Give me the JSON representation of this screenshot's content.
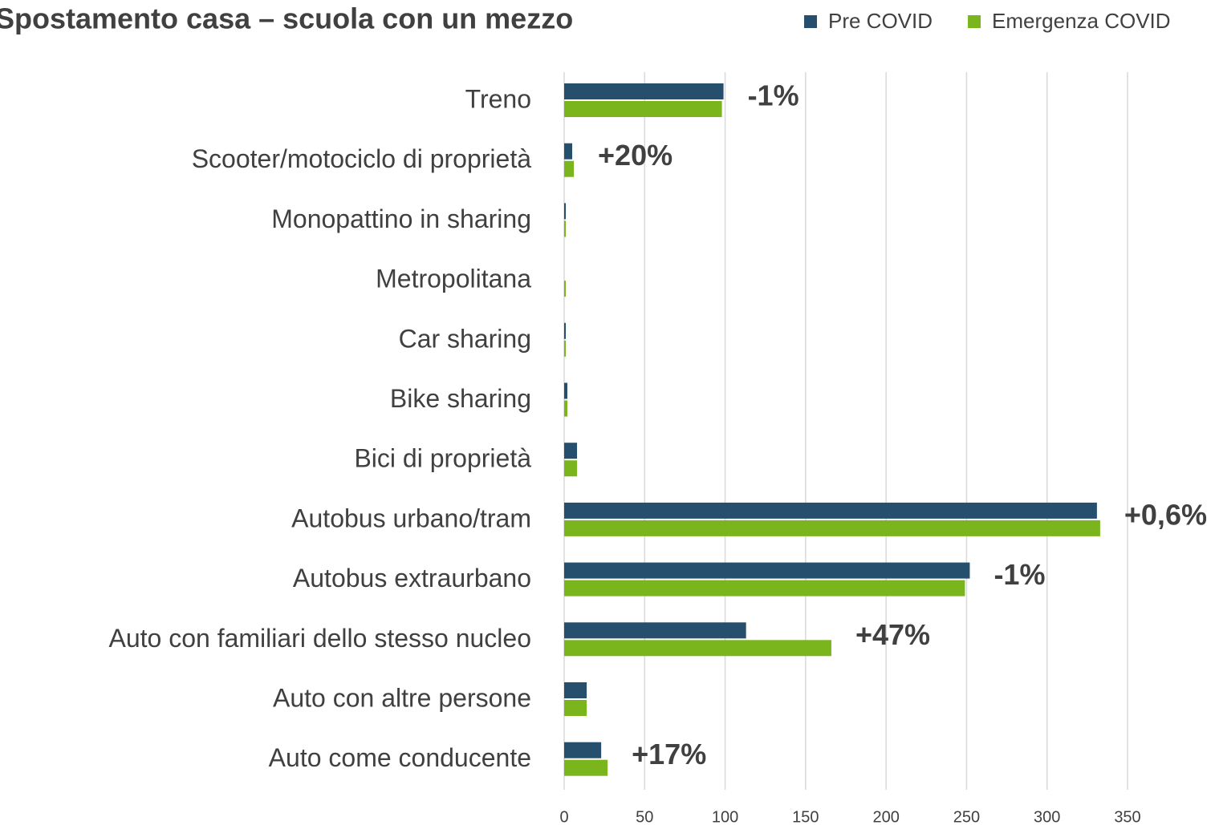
{
  "chart_data": {
    "type": "bar",
    "orientation": "horizontal",
    "title": "Spostamento casa – scuola con un mezzo",
    "categories": [
      "Treno",
      "Scooter/motociclo di proprietà",
      "Monopattino in sharing",
      "Metropolitana",
      "Car sharing",
      "Bike sharing",
      "Bici di proprietà",
      "Autobus urbano/tram",
      "Autobus extraurbano",
      "Auto con familiari dello stesso nucleo",
      "Auto con altre persone",
      "Auto come conducente"
    ],
    "series": [
      {
        "name": "Pre COVID",
        "color": "#264f6e",
        "values": [
          99,
          5,
          1,
          0,
          1,
          2,
          8,
          331,
          252,
          113,
          14,
          23
        ]
      },
      {
        "name": "Emergenza COVID",
        "color": "#7ab51d",
        "values": [
          98,
          6,
          1,
          1,
          1,
          2,
          8,
          333,
          249,
          166,
          14,
          27
        ]
      }
    ],
    "annotations": [
      {
        "category": "Treno",
        "text": "-1%"
      },
      {
        "category": "Scooter/motociclo di proprietà",
        "text": "+20%"
      },
      {
        "category": "Autobus urbano/tram",
        "text": "+0,6%"
      },
      {
        "category": "Autobus extraurbano",
        "text": "-1%"
      },
      {
        "category": "Auto con familiari dello stesso nucleo",
        "text": "+47%"
      },
      {
        "category": "Auto come conducente",
        "text": "+17%"
      }
    ],
    "annotation_color": "#c00000",
    "xlim": [
      0,
      350
    ],
    "xticks": [
      0,
      50,
      100,
      150,
      200,
      250,
      300,
      350
    ],
    "grid": true,
    "legend": "top-right"
  }
}
